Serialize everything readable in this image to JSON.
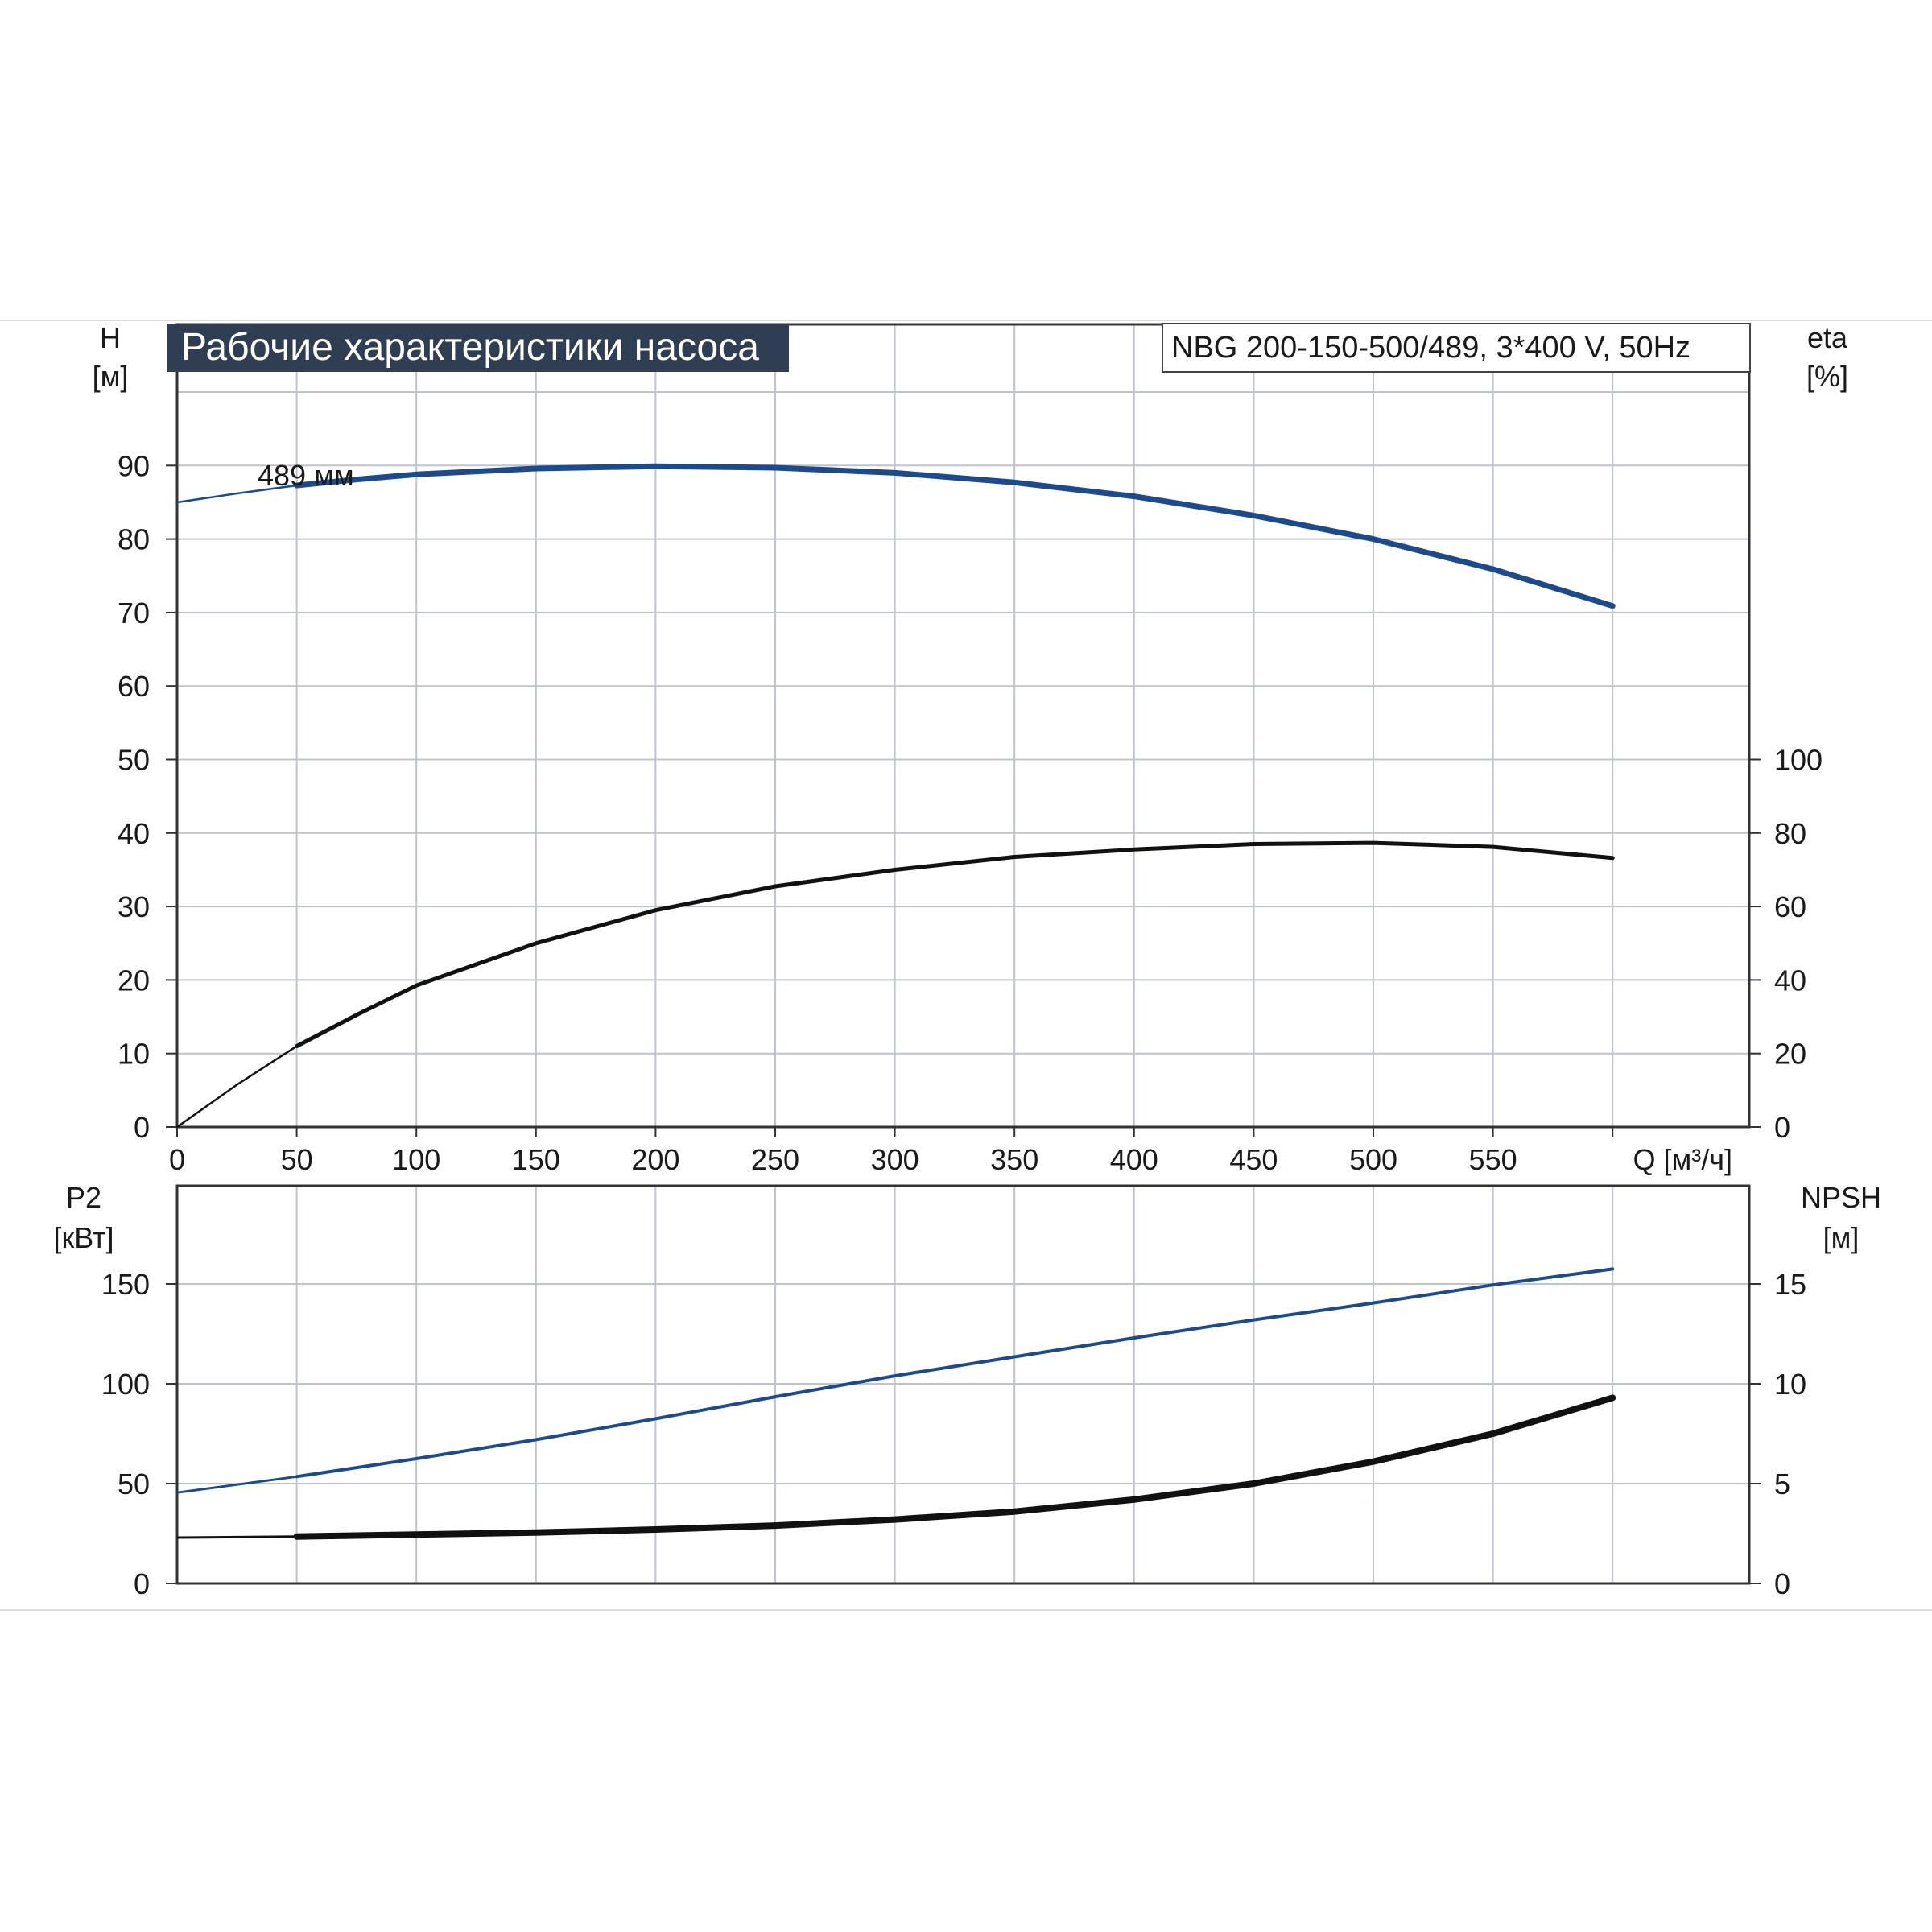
{
  "chart_data": [
    {
      "type": "line",
      "title": "Рабочие характеристики насоса",
      "model_label": "NBG 200-150-500/489, 3*400 V, 50Hz",
      "xlabel": "Q [м³/ч]",
      "x_ticks": [
        "0",
        "50",
        "100",
        "150",
        "200",
        "250",
        "300",
        "350",
        "400",
        "450",
        "500",
        "550"
      ],
      "xlim": [
        0,
        600
      ],
      "ylabel_left": {
        "name": "H",
        "unit": "[м]"
      },
      "ylim_left": [
        0,
        100
      ],
      "y_ticks_left": [
        "0",
        "10",
        "20",
        "30",
        "40",
        "50",
        "60",
        "70",
        "80",
        "90"
      ],
      "ylabel_right": {
        "name": "eta",
        "unit": "[%]"
      },
      "ylim_right": [
        0,
        200
      ],
      "y_ticks_right": [
        "0",
        "20",
        "40",
        "60",
        "80",
        "100"
      ],
      "grid": true,
      "series": [
        {
          "name": "489 мм",
          "axis": "left",
          "color": "#1c4a8a",
          "x": [
            0,
            25,
            50,
            75,
            100,
            150,
            200,
            250,
            300,
            350,
            400,
            450,
            500,
            550,
            600
          ],
          "y": [
            85,
            86.2,
            87.3,
            88.1,
            88.8,
            89.6,
            89.9,
            89.7,
            89.0,
            87.7,
            85.8,
            83.2,
            80.0,
            75.9,
            70.9
          ]
        },
        {
          "axis": "right",
          "color": "#111111",
          "x": [
            0,
            25,
            50,
            75,
            100,
            150,
            200,
            250,
            300,
            350,
            400,
            450,
            500,
            550,
            600
          ],
          "y": [
            0,
            11.5,
            22,
            30.5,
            38.5,
            50,
            59,
            65.5,
            70,
            73.5,
            75.5,
            77,
            77.3,
            76.2,
            73.2
          ]
        }
      ]
    },
    {
      "type": "line",
      "xlim": [
        0,
        600
      ],
      "ylabel_left": {
        "name": "P2",
        "unit": "[кВт]"
      },
      "ylim_left": [
        0,
        200
      ],
      "y_ticks_left": [
        "0",
        "50",
        "100",
        "150"
      ],
      "ylabel_right": {
        "name": "NPSH",
        "unit": "[м]"
      },
      "ylim_right": [
        0,
        20
      ],
      "y_ticks_right": [
        "0",
        "5",
        "10",
        "15"
      ],
      "grid": true,
      "series": [
        {
          "axis": "left",
          "color": "#1c4a8a",
          "x": [
            0,
            50,
            100,
            150,
            200,
            250,
            300,
            350,
            400,
            450,
            500,
            550,
            600
          ],
          "y": [
            45.5,
            53.5,
            62.5,
            72,
            82.5,
            93.5,
            104,
            113.5,
            123,
            132,
            140.5,
            149.5,
            157.5
          ]
        },
        {
          "axis": "right",
          "color": "#111111",
          "x": [
            0,
            50,
            100,
            150,
            200,
            250,
            300,
            350,
            400,
            450,
            500,
            550,
            600
          ],
          "y": [
            2.3,
            2.35,
            2.45,
            2.55,
            2.7,
            2.9,
            3.2,
            3.6,
            4.2,
            5.0,
            6.1,
            7.5,
            9.3
          ]
        }
      ]
    }
  ]
}
